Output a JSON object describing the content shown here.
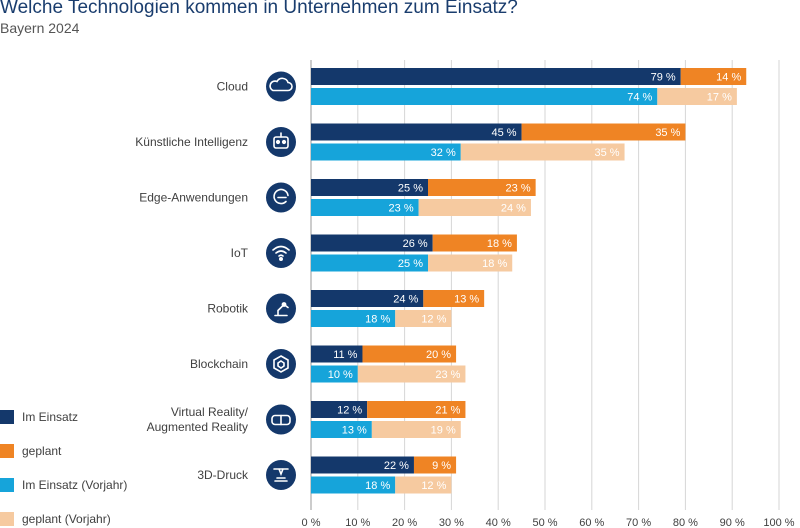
{
  "title": "Welche Technologien kommen in Unternehmen zum Einsatz?",
  "subtitle": "Bayern 2024",
  "chart_data": {
    "type": "bar",
    "orientation": "horizontal",
    "stacked": true,
    "title": "Welche Technologien kommen in Unternehmen zum Einsatz?",
    "subtitle": "Bayern 2024",
    "categories": [
      {
        "label": "Cloud",
        "icon": "cloud-icon"
      },
      {
        "label": "Künstliche Intelligenz",
        "icon": "robot-icon"
      },
      {
        "label": "Edge-Anwendungen",
        "icon": "edge-icon"
      },
      {
        "label": "IoT",
        "icon": "wifi-icon"
      },
      {
        "label": "Robotik",
        "icon": "robot-arm-icon"
      },
      {
        "label": "Blockchain",
        "icon": "blockchain-icon"
      },
      {
        "label": "Virtual Reality/\nAugmented Reality",
        "icon": "vr-headset-icon"
      },
      {
        "label": "3D-Druck",
        "icon": "3d-printer-icon"
      }
    ],
    "rows": [
      {
        "name": "2024",
        "segments": [
          {
            "name": "Im Einsatz",
            "values": [
              79,
              45,
              25,
              26,
              24,
              11,
              12,
              22
            ]
          },
          {
            "name": "geplant",
            "values": [
              14,
              35,
              23,
              18,
              13,
              20,
              21,
              9
            ]
          }
        ]
      },
      {
        "name": "Vorjahr",
        "segments": [
          {
            "name": "Im Einsatz (Vorjahr)",
            "values": [
              74,
              32,
              23,
              25,
              18,
              10,
              13,
              18
            ]
          },
          {
            "name": "geplant (Vorjahr)",
            "values": [
              17,
              35,
              24,
              18,
              12,
              23,
              19,
              12
            ]
          }
        ]
      }
    ],
    "xlim": [
      0,
      100
    ],
    "xticks": [
      "0 %",
      "10 %",
      "20 %",
      "30 %",
      "40 %",
      "50 %",
      "60 %",
      "70 %",
      "80 %",
      "90 %",
      "100 %"
    ],
    "value_suffix": " %",
    "grid": true,
    "legend_position": "bottom-left"
  },
  "legend": [
    {
      "label": "Im Einsatz",
      "color": "#14386b"
    },
    {
      "label": "geplant",
      "color": "#ef8424"
    },
    {
      "label": "Im Einsatz (Vorjahr)",
      "color": "#16a4da"
    },
    {
      "label": "geplant (Vorjahr)",
      "color": "#f6caa0"
    }
  ],
  "colors": {
    "current_in_use": "#14386b",
    "current_planned": "#ef8424",
    "prior_in_use": "#16a4da",
    "prior_planned": "#f6caa0",
    "label_dark_bg": "#ffffff",
    "label_light_bg": "#ffffff",
    "icon_bg": "#14386b",
    "grid": "#d6d6d6"
  }
}
